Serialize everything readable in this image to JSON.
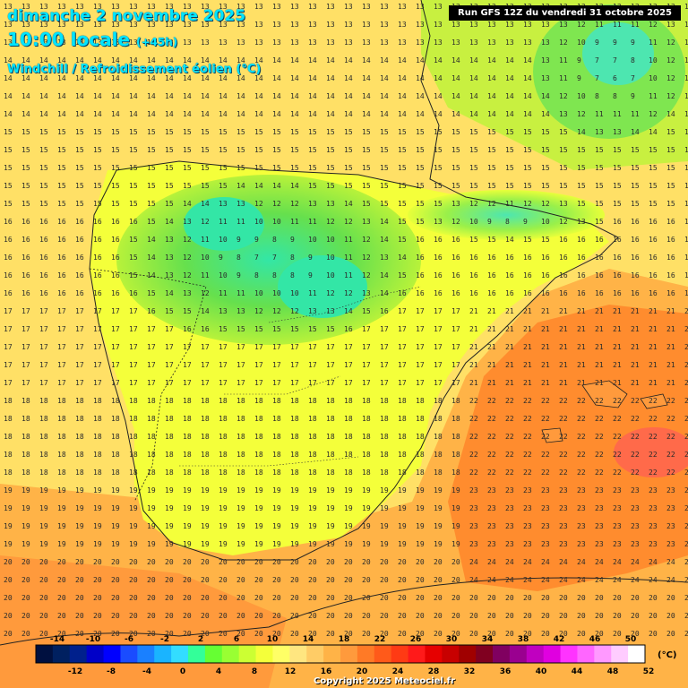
{
  "header": {
    "date_line": "dimanche 2 novembre 2025",
    "time_line": "10:00 locale",
    "offset": "(+45h)",
    "product": "Windchill / Refroidissement éolien (°C)",
    "run_info": "Run GFS 12Z du vendredi 31 octobre 2025"
  },
  "footer": {
    "copyright": "Copyright 2025 Meteociel.fr",
    "unit": "(°C)"
  },
  "colors": {
    "bg_warm": "#ffe066",
    "bg_orange": "#ff9a3c",
    "bg_deep_orange": "#ff6a1a",
    "land_green": "#66e04d",
    "land_cyan": "#33e6a6",
    "land_yellow": "#f4ff3a",
    "title_cyan": "#00e5ff"
  },
  "legend": {
    "top_labels": [
      "-14",
      "-10",
      "-6",
      "-2",
      "2",
      "6",
      "10",
      "14",
      "18",
      "22",
      "26",
      "30",
      "34",
      "38",
      "42",
      "46",
      "50"
    ],
    "bottom_labels": [
      "-12",
      "-8",
      "-4",
      "0",
      "4",
      "8",
      "12",
      "16",
      "20",
      "24",
      "28",
      "32",
      "36",
      "40",
      "44",
      "48",
      "52"
    ],
    "swatches": [
      "#001040",
      "#002060",
      "#00208c",
      "#0000c8",
      "#0000ff",
      "#1a4cff",
      "#1a80ff",
      "#1ab4ff",
      "#33ddff",
      "#33ff99",
      "#66ff33",
      "#99ff33",
      "#ccff33",
      "#f4ff3a",
      "#ffff66",
      "#ffe680",
      "#ffcc66",
      "#ffb347",
      "#ff9a3c",
      "#ff7a26",
      "#ff5a1a",
      "#ff3a14",
      "#ff1a1a",
      "#e60000",
      "#c80000",
      "#a00000",
      "#800020",
      "#800060",
      "#9a0090",
      "#c000c0",
      "#e000e0",
      "#ff33ff",
      "#ff66ff",
      "#ff99ff",
      "#ffccff",
      "#ffffff"
    ]
  }
}
